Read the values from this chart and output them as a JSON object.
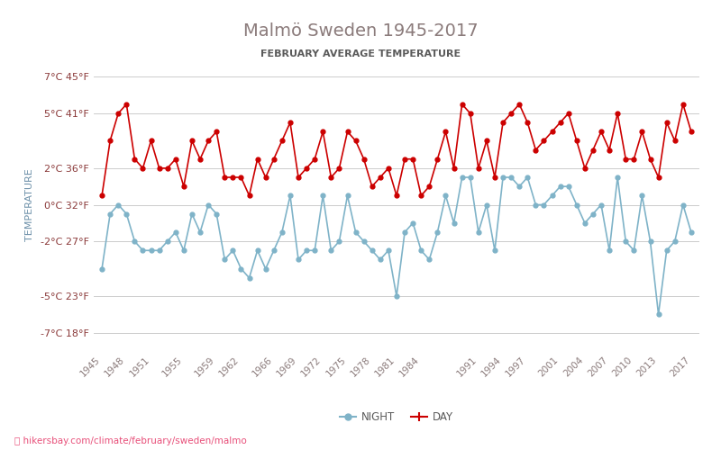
{
  "title": "Malmö Sweden 1945-2017",
  "subtitle": "FEBRUARY AVERAGE TEMPERATURE",
  "ylabel": "TEMPERATURE",
  "footer": "hikersbay.com/climate/february/sweden/malmo",
  "title_color": "#8B7B7B",
  "subtitle_color": "#5a5a5a",
  "ylabel_color": "#6b8fa8",
  "background_color": "#ffffff",
  "grid_color": "#cccccc",
  "day_color": "#cc0000",
  "night_color": "#7fb3c8",
  "yticks_celsius": [
    -7,
    -5,
    -2,
    0,
    2,
    5,
    7
  ],
  "yticks_fahrenheit": [
    18,
    23,
    27,
    32,
    36,
    41,
    45
  ],
  "years": [
    1945,
    1946,
    1947,
    1948,
    1949,
    1950,
    1951,
    1952,
    1953,
    1954,
    1955,
    1956,
    1957,
    1958,
    1959,
    1960,
    1961,
    1962,
    1963,
    1964,
    1965,
    1966,
    1967,
    1968,
    1969,
    1970,
    1971,
    1972,
    1973,
    1974,
    1975,
    1976,
    1977,
    1978,
    1979,
    1980,
    1981,
    1982,
    1983,
    1984,
    1985,
    1986,
    1987,
    1988,
    1989,
    1990,
    1991,
    1992,
    1993,
    1994,
    1995,
    1996,
    1997,
    1998,
    1999,
    2000,
    2001,
    2002,
    2003,
    2004,
    2005,
    2006,
    2007,
    2008,
    2009,
    2010,
    2011,
    2012,
    2013,
    2014,
    2015,
    2016,
    2017
  ],
  "day_temps": [
    0.5,
    3.5,
    5.0,
    5.5,
    2.5,
    2.0,
    3.5,
    2.0,
    2.0,
    2.5,
    1.0,
    3.5,
    2.5,
    3.5,
    4.0,
    1.5,
    1.5,
    1.5,
    0.5,
    2.5,
    1.5,
    2.5,
    3.5,
    4.5,
    1.5,
    2.0,
    2.5,
    4.0,
    1.5,
    2.0,
    4.0,
    3.5,
    2.5,
    1.0,
    1.5,
    2.0,
    0.5,
    2.5,
    2.5,
    0.5,
    1.0,
    2.5,
    4.0,
    2.0,
    5.5,
    5.0,
    2.0,
    3.5,
    1.5,
    4.5,
    5.0,
    5.5,
    4.5,
    3.0,
    3.5,
    4.0,
    4.5,
    5.0,
    3.5,
    2.0,
    3.0,
    4.0,
    3.0,
    5.0,
    2.5,
    2.5,
    4.0,
    2.5,
    1.5,
    4.5,
    3.5,
    5.5,
    4.0
  ],
  "night_temps": [
    -3.5,
    -0.5,
    0.0,
    -0.5,
    -2.0,
    -2.5,
    -2.5,
    -2.5,
    -2.0,
    -1.5,
    -2.5,
    -0.5,
    -1.5,
    0.0,
    -0.5,
    -3.0,
    -2.5,
    -3.5,
    -4.0,
    -2.5,
    -3.5,
    -2.5,
    -1.5,
    0.5,
    -3.0,
    -2.5,
    -2.5,
    0.5,
    -2.5,
    -2.0,
    0.5,
    -1.5,
    -2.0,
    -2.5,
    -3.0,
    -2.5,
    -5.0,
    -1.5,
    -1.0,
    -2.5,
    -3.0,
    -1.5,
    0.5,
    -1.0,
    1.5,
    1.5,
    -1.5,
    0.0,
    -2.5,
    1.5,
    1.5,
    1.0,
    1.5,
    0.0,
    0.0,
    0.5,
    1.0,
    1.0,
    0.0,
    -1.0,
    -0.5,
    0.0,
    -2.5,
    1.5,
    -2.0,
    -2.5,
    0.5,
    -2.0,
    -6.0,
    -2.5,
    -2.0,
    0.0,
    -1.5
  ],
  "xtick_years": [
    1945,
    1948,
    1951,
    1955,
    1959,
    1962,
    1966,
    1969,
    1972,
    1975,
    1978,
    1981,
    1984,
    1991,
    1994,
    1997,
    2001,
    2004,
    2007,
    2010,
    2013,
    2017
  ],
  "ylim": [
    -8,
    8
  ]
}
